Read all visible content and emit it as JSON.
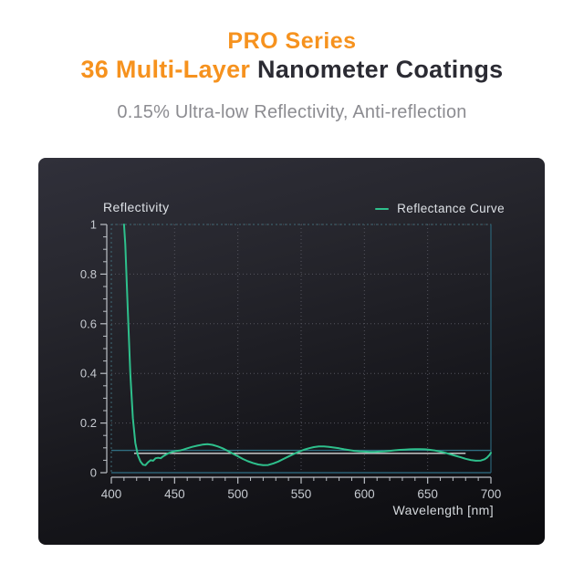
{
  "header": {
    "line1": "PRO Series",
    "line2_highlight": "36 Multi-Layer ",
    "line2_rest": "Nanometer Coatings",
    "subtitle": "0.15% Ultra-low Reflectivity, Anti-reflection",
    "accent_color": "#f6921e",
    "dark_text_color": "#2b2b33",
    "subtitle_color": "#8c8c91"
  },
  "chart_data": {
    "type": "line",
    "title": "Reflectivity",
    "xlabel": "Wavelength [nm]",
    "xlim": [
      400,
      700
    ],
    "ylim": [
      0,
      1
    ],
    "x_ticks": [
      400,
      450,
      500,
      550,
      600,
      650,
      700
    ],
    "y_ticks": [
      0,
      0.2,
      0.4,
      0.6,
      0.8,
      1
    ],
    "x_minor_step": 10,
    "y_minor_step": 0.05,
    "grid": "dotted",
    "legend_position": "top-right",
    "legend": [
      {
        "label": "Reflectance Curve",
        "color": "#2ec08c"
      }
    ],
    "colors": {
      "curve": "#2ec08c",
      "grid_dot": "#55555e",
      "plot_border": "#3f6b77",
      "solid_border": "#2b6175",
      "axis": "#bcc0c6",
      "tick_label": "#c6cad0",
      "teal_refline": "#2f6e81",
      "white_refline": "#d9d9d9"
    },
    "reference_lines": [
      {
        "orientation": "h",
        "value": 0.09,
        "x_from": 400,
        "x_to": 700,
        "color_key": "teal_refline"
      },
      {
        "orientation": "h",
        "value": 0.078,
        "x_from": 418,
        "x_to": 680,
        "color_key": "white_refline"
      }
    ],
    "series": [
      {
        "name": "Reflectance Curve",
        "color": "#2ec08c",
        "points": [
          [
            410,
            1.0
          ],
          [
            411,
            0.92
          ],
          [
            413,
            0.66
          ],
          [
            415,
            0.4
          ],
          [
            417,
            0.22
          ],
          [
            419,
            0.12
          ],
          [
            421,
            0.07
          ],
          [
            423,
            0.045
          ],
          [
            425,
            0.032
          ],
          [
            427,
            0.03
          ],
          [
            429,
            0.042
          ],
          [
            431,
            0.05
          ],
          [
            433,
            0.048
          ],
          [
            435,
            0.058
          ],
          [
            437,
            0.06
          ],
          [
            439,
            0.058
          ],
          [
            441,
            0.066
          ],
          [
            443,
            0.072
          ],
          [
            445,
            0.078
          ],
          [
            448,
            0.084
          ],
          [
            451,
            0.087
          ],
          [
            454,
            0.089
          ],
          [
            457,
            0.093
          ],
          [
            460,
            0.098
          ],
          [
            464,
            0.104
          ],
          [
            468,
            0.109
          ],
          [
            472,
            0.113
          ],
          [
            476,
            0.115
          ],
          [
            480,
            0.112
          ],
          [
            484,
            0.106
          ],
          [
            488,
            0.098
          ],
          [
            492,
            0.088
          ],
          [
            496,
            0.077
          ],
          [
            500,
            0.066
          ],
          [
            504,
            0.055
          ],
          [
            508,
            0.046
          ],
          [
            512,
            0.039
          ],
          [
            516,
            0.033
          ],
          [
            520,
            0.03
          ],
          [
            524,
            0.031
          ],
          [
            528,
            0.037
          ],
          [
            532,
            0.045
          ],
          [
            536,
            0.055
          ],
          [
            540,
            0.065
          ],
          [
            544,
            0.075
          ],
          [
            548,
            0.084
          ],
          [
            552,
            0.092
          ],
          [
            556,
            0.098
          ],
          [
            560,
            0.103
          ],
          [
            564,
            0.106
          ],
          [
            568,
            0.106
          ],
          [
            572,
            0.104
          ],
          [
            576,
            0.101
          ],
          [
            580,
            0.098
          ],
          [
            584,
            0.094
          ],
          [
            588,
            0.091
          ],
          [
            592,
            0.088
          ],
          [
            596,
            0.086
          ],
          [
            600,
            0.085
          ],
          [
            604,
            0.084
          ],
          [
            608,
            0.084
          ],
          [
            612,
            0.085
          ],
          [
            616,
            0.086
          ],
          [
            620,
            0.088
          ],
          [
            624,
            0.09
          ],
          [
            628,
            0.092
          ],
          [
            632,
            0.093
          ],
          [
            636,
            0.094
          ],
          [
            640,
            0.095
          ],
          [
            644,
            0.095
          ],
          [
            648,
            0.094
          ],
          [
            652,
            0.092
          ],
          [
            656,
            0.089
          ],
          [
            660,
            0.085
          ],
          [
            664,
            0.08
          ],
          [
            668,
            0.074
          ],
          [
            672,
            0.068
          ],
          [
            676,
            0.062
          ],
          [
            680,
            0.056
          ],
          [
            684,
            0.051
          ],
          [
            688,
            0.048
          ],
          [
            692,
            0.049
          ],
          [
            695,
            0.054
          ],
          [
            697,
            0.061
          ],
          [
            699,
            0.072
          ],
          [
            700,
            0.08
          ]
        ]
      }
    ]
  }
}
